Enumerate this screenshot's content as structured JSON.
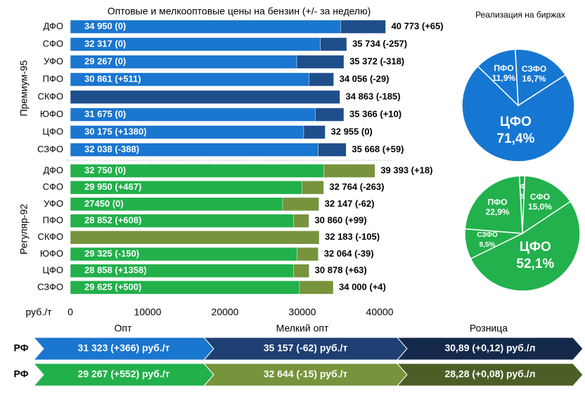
{
  "chart_data": [
    {
      "type": "bar",
      "title": "Оптовые и мелкооптовые цены на бензин (+/- за неделю)",
      "xlabel": "руб./т",
      "xlim": [
        0,
        40000
      ],
      "xticks": [
        0,
        10000,
        20000,
        30000,
        40000
      ],
      "groups": [
        {
          "name": "Премиум-95",
          "categories": [
            "ДФО",
            "СФО",
            "УФО",
            "ПФО",
            "СКФО",
            "ЮФО",
            "ЦФО",
            "СЗФО"
          ],
          "series": [
            {
              "color": "#1f4e8c",
              "values": [
                40773,
                35734,
                35372,
                34056,
                34863,
                35366,
                32955,
                35668
              ],
              "value_labels": [
                "40 773 (+65)",
                "35 734 (-257)",
                "35 372 (-318)",
                "34 056 (-29)",
                "34 863 (-185)",
                "35 366 (+10)",
                "32 955 (0)",
                "35 668 (+59)"
              ]
            },
            {
              "color": "#1a76cf",
              "values": [
                34950,
                32317,
                29267,
                30861,
                null,
                31675,
                30175,
                32038
              ],
              "value_labels": [
                "34 950 (0)",
                "32 317 (0)",
                "29 267 (0)",
                "30 861 (+511)",
                null,
                "31 675 (0)",
                "30 175 (+1380)",
                "32 038 (-388)"
              ]
            }
          ]
        },
        {
          "name": "Регуляр-92",
          "categories": [
            "ДФО",
            "СФО",
            "УФО",
            "ПФО",
            "СКФО",
            "ЮФО",
            "ЦФО",
            "СЗФО"
          ],
          "series": [
            {
              "color": "#77933c",
              "values": [
                39393,
                32764,
                32147,
                30860,
                32183,
                32064,
                30878,
                34000
              ],
              "value_labels": [
                "39 393 (+18)",
                "32 764 (-263)",
                "32 147 (-62)",
                "30 860 (+99)",
                "32 183 (-105)",
                "32 064 (-39)",
                "30 878 (+63)",
                "34 000 (+4)"
              ]
            },
            {
              "color": "#22b04b",
              "values": [
                32750,
                29950,
                27450,
                28852,
                null,
                29325,
                28858,
                29625
              ],
              "value_labels": [
                "32 750 (0)",
                "29 950 (+467)",
                "27450 (0)",
                "28 852 (+608)",
                null,
                "29 325 (-150)",
                "28 858 (+1358)",
                "29 625 (+500)"
              ]
            }
          ]
        }
      ]
    },
    {
      "type": "pie",
      "title": "Реализация на биржах",
      "color": "#1677d2",
      "categories": [
        "СЗФО",
        "ЦФО",
        "ПФО"
      ],
      "values": [
        16.7,
        71.4,
        11.9
      ],
      "value_labels": [
        "16,7%",
        "71,4%",
        "11,9%"
      ]
    },
    {
      "type": "pie",
      "color": "#22b14c",
      "categories": [
        "ЮФО",
        "СФО",
        "ЦФО",
        "СЗФО",
        "ПФО"
      ],
      "values": [
        1.5,
        15.0,
        52.1,
        8.5,
        22.9
      ],
      "value_labels": [
        "1,5%",
        "15,0%",
        "52,1%",
        "8,5%",
        "22,9%"
      ]
    }
  ],
  "summary": {
    "columns": [
      "Опт",
      "Мелкий опт",
      "Розница"
    ],
    "rows": [
      {
        "label": "РФ",
        "colors": [
          "#1a76cf",
          "#1f3f73",
          "#14294a"
        ],
        "cells": [
          "31 323 (+366) руб./т",
          "35 157 (-62) руб./т",
          "30,89 (+0,12) руб./л"
        ]
      },
      {
        "label": "РФ",
        "colors": [
          "#22b04b",
          "#77933c",
          "#4b5e26"
        ],
        "cells": [
          "29 267 (+552) руб./т",
          "32 644 (-15) руб./т",
          "28,28 (+0,08) руб./л"
        ]
      }
    ]
  }
}
